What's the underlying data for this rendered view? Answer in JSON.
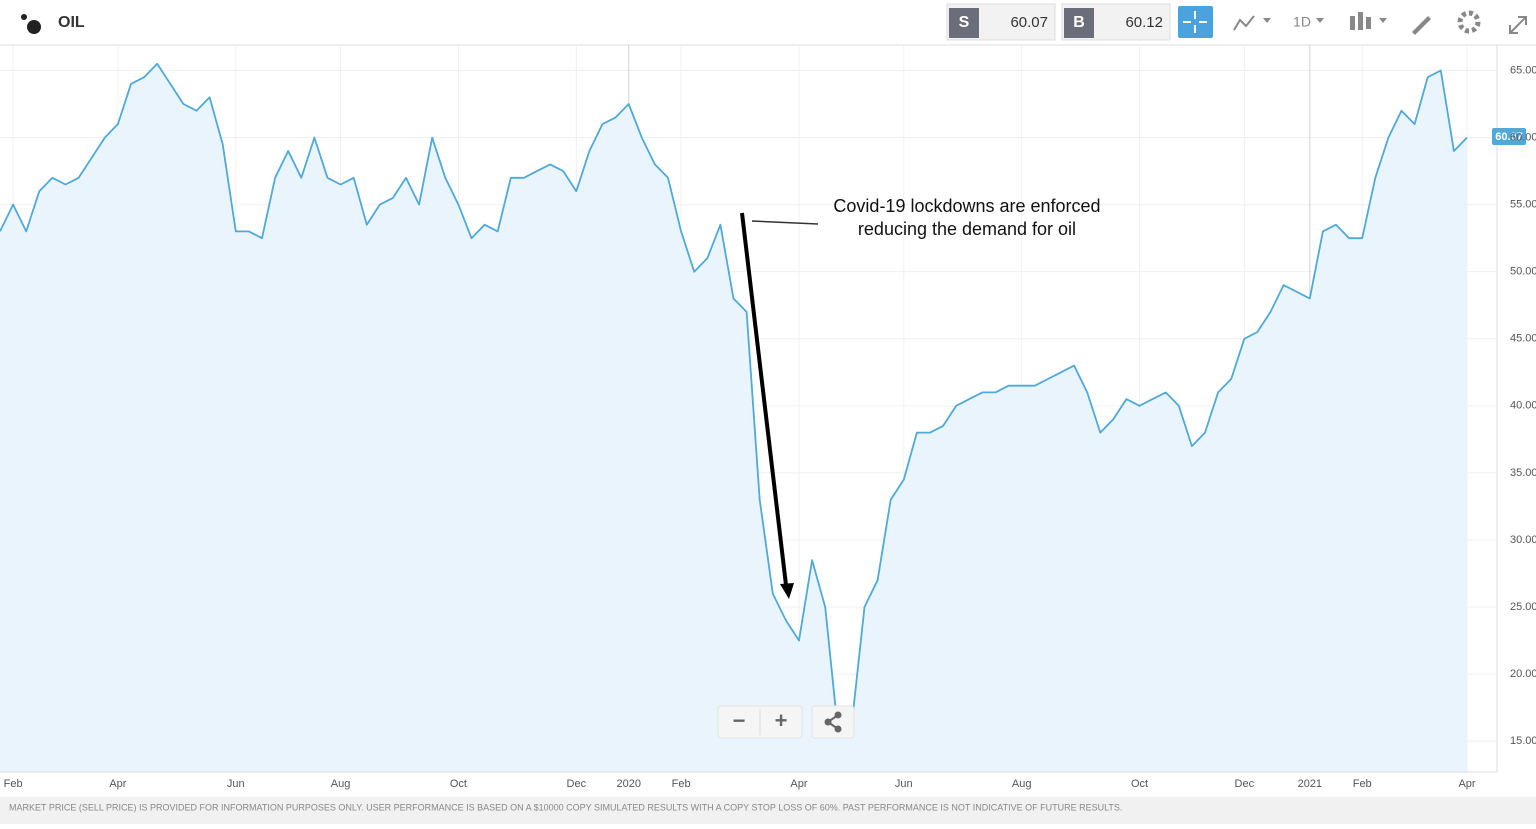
{
  "header": {
    "title": "OIL",
    "sell_label": "S",
    "sell_price": "60.07",
    "buy_label": "B",
    "buy_price": "60.12",
    "interval": "1D"
  },
  "zoom": {
    "minus": "−",
    "plus": "+"
  },
  "footer": "MARKET PRICE (SELL PRICE) IS PROVIDED FOR INFORMATION PURPOSES ONLY. USER PERFORMANCE IS BASED ON A $10000 COPY SIMULATED RESULTS WITH A COPY STOP LOSS OF 60%. PAST PERFORMANCE IS NOT INDICATIVE OF FUTURE RESULTS.",
  "chart_data": {
    "type": "line",
    "annotation": [
      "Covid-19 lockdowns are enforced",
      "reducing the demand for oil"
    ],
    "price_tag": "60.07",
    "color": "#4fa9d9",
    "categories": [
      null,
      "Feb",
      null,
      null,
      null,
      null,
      null,
      null,
      null,
      "Apr",
      null,
      null,
      null,
      null,
      null,
      null,
      null,
      null,
      "Jun",
      null,
      null,
      null,
      null,
      null,
      null,
      null,
      "Aug",
      null,
      null,
      null,
      null,
      null,
      null,
      null,
      null,
      "Oct",
      null,
      null,
      null,
      null,
      null,
      null,
      null,
      null,
      "Dec",
      null,
      null,
      null,
      "2020",
      null,
      null,
      null,
      "Feb",
      null,
      null,
      null,
      null,
      null,
      null,
      null,
      null,
      "Apr",
      null,
      null,
      null,
      null,
      null,
      null,
      null,
      "Jun",
      null,
      null,
      null,
      null,
      null,
      null,
      null,
      null,
      "Aug",
      null,
      null,
      null,
      null,
      null,
      null,
      null,
      null,
      "Oct",
      null,
      null,
      null,
      null,
      null,
      null,
      null,
      "Dec",
      null,
      null,
      null,
      null,
      "2021",
      null,
      null,
      null,
      "Feb",
      null,
      null,
      null,
      null,
      null,
      null,
      null,
      "Apr"
    ],
    "values": [
      53,
      55,
      53,
      56,
      57,
      56.5,
      57,
      58.5,
      60,
      61,
      64,
      64.5,
      65.5,
      64,
      62.5,
      62,
      63,
      59.5,
      53,
      53,
      52.5,
      57,
      59,
      57,
      60,
      57,
      56.5,
      57,
      53.5,
      55,
      55.5,
      57,
      55,
      60,
      57,
      55,
      52.5,
      53.5,
      53,
      57,
      57,
      57.5,
      58,
      57.5,
      56,
      59,
      61,
      61.5,
      62.5,
      60,
      58,
      57,
      53,
      50,
      51,
      53.5,
      48,
      47,
      33,
      26,
      24,
      22.5,
      28.5,
      25,
      15.5,
      16,
      25,
      27,
      33,
      34.5,
      38,
      38,
      38.5,
      40,
      40.5,
      41,
      41,
      41.5,
      41.5,
      41.5,
      42,
      42.5,
      43,
      41,
      38,
      39,
      40.5,
      40,
      40.5,
      41,
      40,
      37,
      38,
      41,
      42,
      45,
      45.5,
      47,
      49,
      48.5,
      48,
      53,
      53.5,
      52.5,
      52.5,
      57,
      60,
      62,
      61,
      64.5,
      65,
      59,
      60
    ],
    "ylim": [
      12.7,
      66.9
    ],
    "yticks": [
      {
        "value": 15,
        "label": "15.00"
      },
      {
        "value": 20,
        "label": "20.00"
      },
      {
        "value": 25,
        "label": "25.00"
      },
      {
        "value": 30,
        "label": "30.00"
      },
      {
        "value": 35,
        "label": "35.00"
      },
      {
        "value": 40,
        "label": "40.00"
      },
      {
        "value": 45,
        "label": "45.00"
      },
      {
        "value": 50,
        "label": "50.00"
      },
      {
        "value": 55,
        "label": "55.00"
      },
      {
        "value": 60,
        "label": "60.00"
      },
      {
        "value": 65,
        "label": "65.00"
      }
    ],
    "grid": true
  }
}
